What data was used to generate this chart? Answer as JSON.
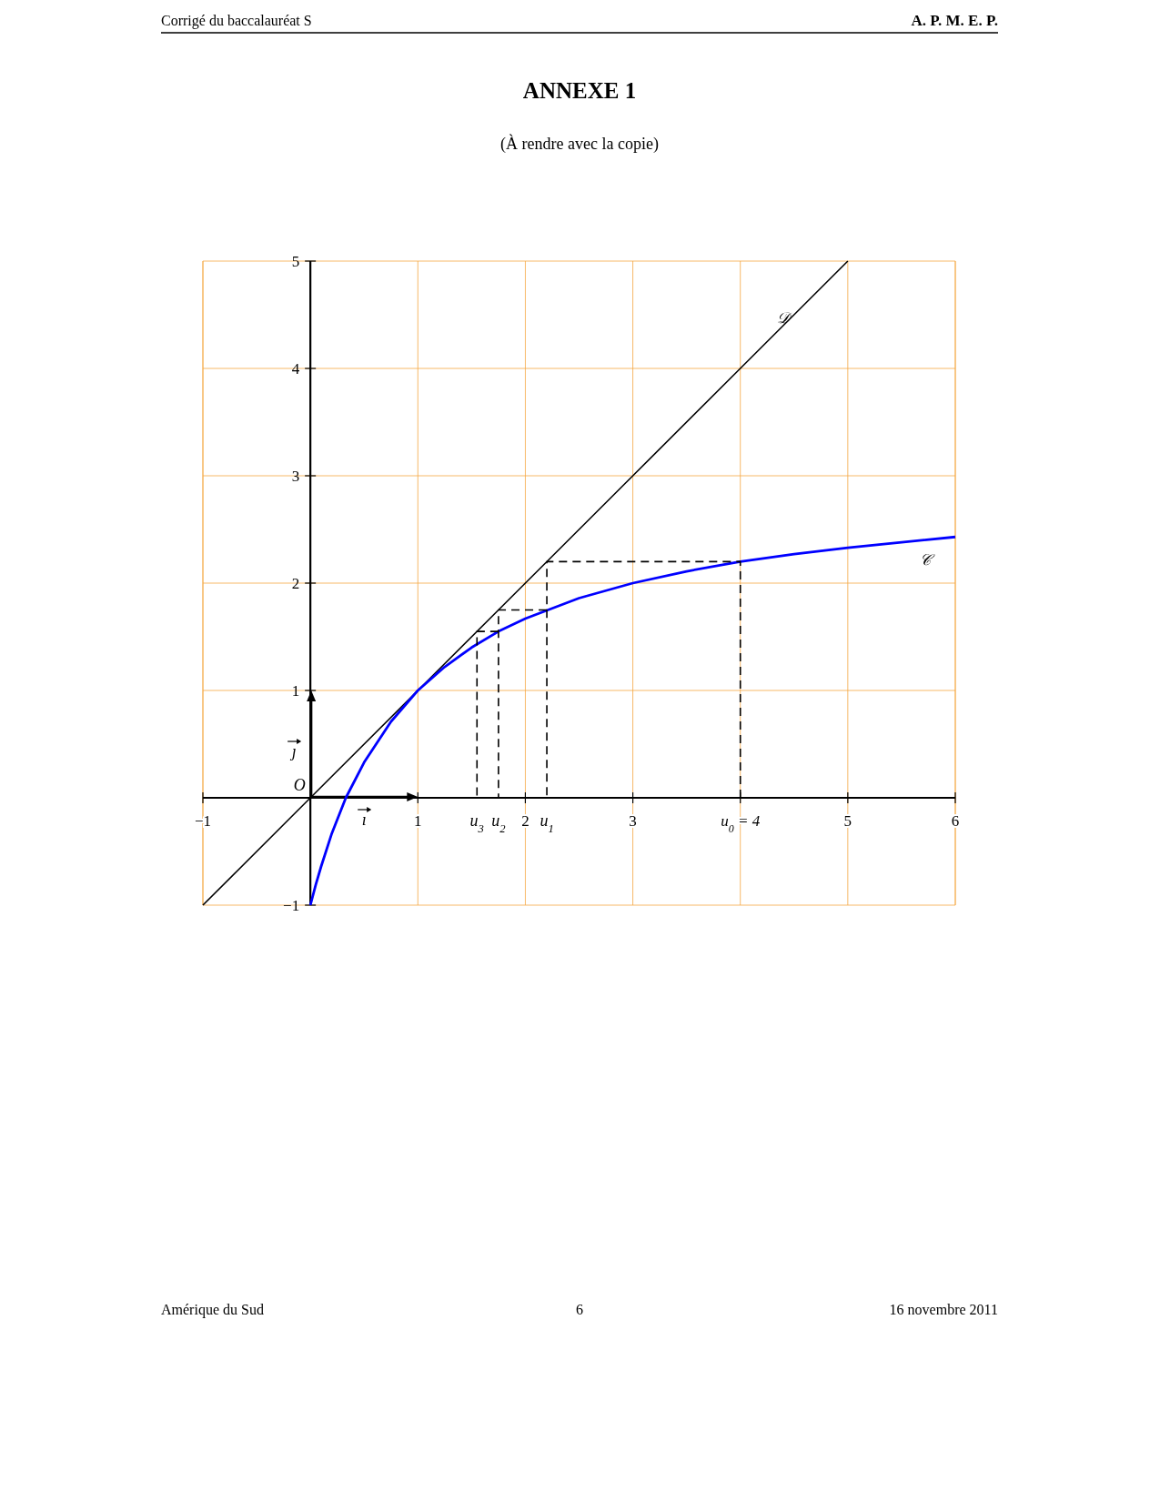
{
  "chart_data": {
    "type": "line",
    "title": "ANNEXE 1",
    "subtitle": "(À rendre avec la copie)",
    "xlim": [
      -1,
      6
    ],
    "ylim": [
      -1,
      5
    ],
    "xticks": [
      {
        "value": -1,
        "label": "−1"
      },
      1,
      2,
      3,
      {
        "value": 4,
        "label": "u$_{0}$ = 4"
      },
      5,
      6
    ],
    "yticks": [
      {
        "value": -1,
        "label": "−1"
      },
      1,
      2,
      3,
      4,
      5
    ],
    "grid": true,
    "marker": "none",
    "series": [
      {
        "name": "𝒟",
        "color": "#000000",
        "x": [
          -1,
          0,
          1,
          2,
          3,
          4,
          5
        ],
        "values": [
          -1,
          0,
          1,
          2,
          3,
          4,
          5
        ]
      },
      {
        "name": "𝒞",
        "color": "#0000ff",
        "x": [
          0,
          0.05,
          0.1,
          0.2,
          0.33,
          0.5,
          0.75,
          1,
          1.25,
          1.5,
          1.75,
          2,
          2.5,
          3,
          3.5,
          4,
          4.5,
          5,
          5.5,
          6
        ],
        "values": [
          -1,
          -0.81,
          -0.64,
          -0.33,
          0,
          0.33,
          0.71,
          1,
          1.22,
          1.4,
          1.55,
          1.67,
          1.86,
          2,
          2.11,
          2.2,
          2.27,
          2.33,
          2.38,
          2.43
        ]
      },
      {
        "color": "#000000",
        "line_style": "dashed",
        "x": [
          4,
          4,
          2.2,
          2.2
        ],
        "values": [
          0,
          2.2,
          2.2,
          0
        ]
      },
      {
        "color": "#000000",
        "line_style": "dashed",
        "x": [
          2.2,
          1.75,
          1.75
        ],
        "values": [
          1.75,
          1.75,
          0
        ]
      },
      {
        "color": "#000000",
        "line_style": "dashed",
        "x": [
          1.75,
          1.55,
          1.55
        ],
        "values": [
          1.55,
          1.55,
          0
        ]
      }
    ],
    "annotations": [
      "Corrigé du baccalauréat S",
      "A. P. M. E. P.",
      "Amérique du Sud",
      "6",
      "16 novembre 2011",
      "O",
      "ı",
      "ȷ",
      {
        "text": "u$_{3}$",
        "x": 1.55,
        "y": 0
      },
      {
        "text": "u$_{2}$",
        "x": 1.75,
        "y": 0
      },
      {
        "text": "u$_{1}$",
        "x": 2.2,
        "y": 0
      }
    ]
  }
}
